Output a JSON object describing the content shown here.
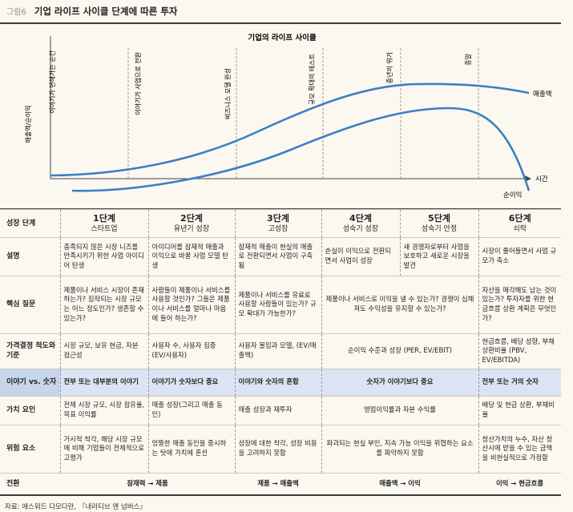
{
  "figure": {
    "number": "그림6",
    "title": "기업 라이프 사이클 단계에 따른 투자"
  },
  "chart": {
    "title": "기업의 라이프 사이클",
    "y_label": "매출액/순이익",
    "x_label": "시간",
    "series": [
      "매출액",
      "순이익"
    ],
    "phase_labels": [
      "이야기가 변해가는 순간",
      "이야기가 사업으로 전환",
      "비즈니스 모델 완성",
      "규모 확대의 테스트",
      "중년의 위기",
      "종말"
    ]
  },
  "table": {
    "row_headers": [
      "성장 단계",
      "설명",
      "핵심 질문",
      "가격결정 척도와 기준",
      "이야기 vs. 숫자",
      "가치 요인",
      "위험 요소",
      "전환"
    ],
    "stages": [
      {
        "num": "1단계",
        "name": "스타트업"
      },
      {
        "num": "2단계",
        "name": "유년기 성장"
      },
      {
        "num": "3단계",
        "name": "고성장"
      },
      {
        "num": "4단계",
        "name": "성숙기 성장"
      },
      {
        "num": "5단계",
        "name": "성숙기 안정"
      },
      {
        "num": "6단계",
        "name": "쇠락"
      }
    ],
    "desc": [
      "충족되지 않은 시장 니즈를 만족시키기 위한 사업 아이디어 탄생",
      "아이디어를 잠재적 매출과 이익으로 바꿀 사업 모델 탄생",
      "잠재적 매출이 현실의 매출로 전환되면서 사업이 구축됨",
      "손실이 이익으로 전환되면서 사업이 성장",
      "새 경쟁자로부터 사업을 보호하고 새로운 시장을 발견",
      "시장이 줄어들면서 사업 규모가 축소"
    ],
    "questions": [
      "제품이나 서비스 시장이 존재하는가? 짐작되는 시장 규모는 어느 정도인가? 생존할 수 있는가?",
      "사람들이 제품이나 서비스를 사용할 것인가? 그들은 제품이나 서비스를 얼마나 마음에 들어 하는가?",
      "제품이나 서비스를 유료로 사용할 사람들이 있는가? 규모 확대가 가능한가?",
      "제품이나 서비스로 이익을 낼 수 있는가? 경쟁이 심해져도 수익성을 유지할 수 있는가?",
      "자산을 매각해도 남는 것이 있는가? 투자자를 위한 현금흐름 상환 계획은 무엇인가?"
    ],
    "pricing": [
      "시장 규모, 보유 현금, 자본 접근성",
      "사용자 수, 사용자 집중 (EV/사용자)",
      "사용자 몰입과 모델, (EV/매출액)",
      "순이익 수준과 성장 (PER, EV/EBIT)",
      "현금흐름, 배당 성향, 부채상환비율 (PBV, EV/EBITDA)"
    ],
    "story": [
      "전부 또는 대부분의 이야기",
      "이야기가 숫자보다 중요",
      "이야기와 숫자의 혼합",
      "숫자가 이야기보다 중요",
      "전부 또는 거의 숫자"
    ],
    "value": [
      "전체 시장 규모, 시장 점유율, 목표 이익률",
      "매출 성장(그리고 매출 동인)",
      "매출 성장과 재투자",
      "영업이익률과 자본 수익률",
      "배당 및 현금 상환, 부채비율"
    ],
    "risk": [
      "거시적 착각, 해당 시장 규모에 비해 기업들이 전체적으로 고평가",
      "엉뚱한 매출 동인을 중시하는 탓에 가치에 혼선",
      "성장에 대한 착각, 성장 비용을 고려하지 못함",
      "파괴되는 현실 부인, 지속 가능 이익을 위협하는 요소를 파악하지 못함",
      "청산가치의 누수, 자산 청산시에 받을 수 있는 금액을 비현실적으로 가정함"
    ],
    "transitions": [
      "잠재력 → 제품",
      "제품 → 매출액",
      "매출액 → 이익",
      "이익 → 현금흐름"
    ]
  },
  "source": "자료: 애스워드 다모다란, 『내러티브 앤 넘버스』"
}
